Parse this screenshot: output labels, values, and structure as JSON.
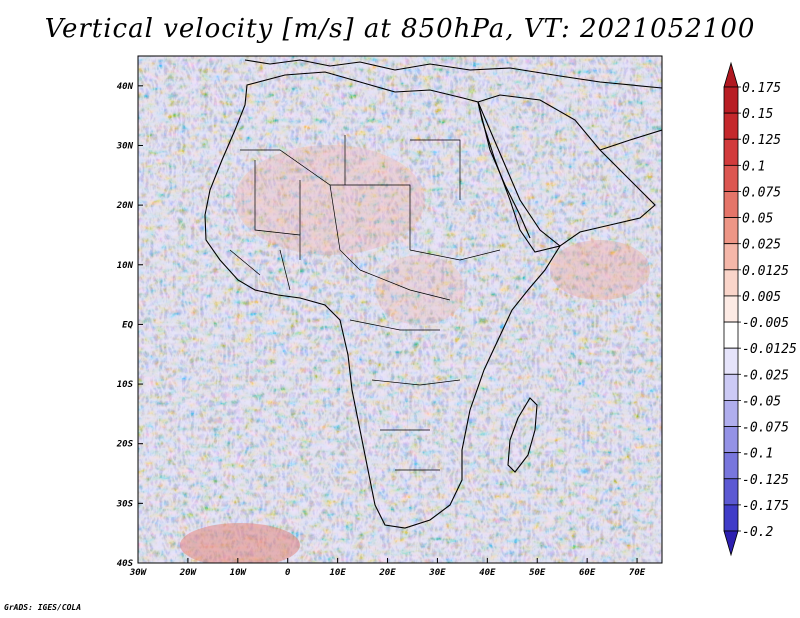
{
  "title": "Vertical velocity [m/s] at 850hPa, VT: 2021052100",
  "footer": "GrADS: IGES/COLA",
  "map": {
    "lon_range": [
      -30,
      75
    ],
    "lat_range": [
      -40,
      45
    ],
    "lon_ticks": [
      {
        "value": -30,
        "label": "30W"
      },
      {
        "value": -20,
        "label": "20W"
      },
      {
        "value": -10,
        "label": "10W"
      },
      {
        "value": 0,
        "label": "0"
      },
      {
        "value": 10,
        "label": "10E"
      },
      {
        "value": 20,
        "label": "20E"
      },
      {
        "value": 30,
        "label": "30E"
      },
      {
        "value": 40,
        "label": "40E"
      },
      {
        "value": 50,
        "label": "50E"
      },
      {
        "value": 60,
        "label": "60E"
      },
      {
        "value": 70,
        "label": "70E"
      }
    ],
    "lat_ticks": [
      {
        "value": 40,
        "label": "40N"
      },
      {
        "value": 30,
        "label": "30N"
      },
      {
        "value": 20,
        "label": "20N"
      },
      {
        "value": 10,
        "label": "10N"
      },
      {
        "value": 0,
        "label": "EQ"
      },
      {
        "value": -10,
        "label": "10S"
      },
      {
        "value": -20,
        "label": "20S"
      },
      {
        "value": -30,
        "label": "30S"
      },
      {
        "value": -40,
        "label": "40S"
      }
    ]
  },
  "colorbar": {
    "levels": [
      {
        "label": "0.175",
        "color": "#b81d24"
      },
      {
        "label": "0.15",
        "color": "#c5282c"
      },
      {
        "label": "0.125",
        "color": "#d23b3c"
      },
      {
        "label": "0.1",
        "color": "#dc5651"
      },
      {
        "label": "0.075",
        "color": "#e57569"
      },
      {
        "label": "0.05",
        "color": "#ee9686"
      },
      {
        "label": "0.025",
        "color": "#f5b7a9"
      },
      {
        "label": "0.0125",
        "color": "#fad5ca"
      },
      {
        "label": "0.005",
        "color": "#fdebe5"
      },
      {
        "label": "-0.005",
        "color": "#ffffff"
      },
      {
        "label": "-0.0125",
        "color": "#e6e4fb"
      },
      {
        "label": "-0.025",
        "color": "#cccaf5"
      },
      {
        "label": "-0.05",
        "color": "#b0aeee"
      },
      {
        "label": "-0.075",
        "color": "#9492e6"
      },
      {
        "label": "-0.1",
        "color": "#7876dd"
      },
      {
        "label": "-0.125",
        "color": "#5c59d3"
      },
      {
        "label": "-0.175",
        "color": "#403cc8"
      },
      {
        "label": "-0.2",
        "color": "#2a24bb"
      }
    ],
    "top_triangle_color": "#b01820",
    "bottom_triangle_color": "#2d1fb0"
  },
  "coastline_color": "#000000"
}
